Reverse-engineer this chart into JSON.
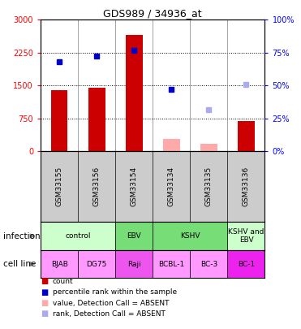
{
  "title": "GDS989 / 34936_at",
  "samples": [
    "GSM33155",
    "GSM33156",
    "GSM33154",
    "GSM33134",
    "GSM33135",
    "GSM33136"
  ],
  "infection_groups": [
    {
      "label": "control",
      "start": 0,
      "end": 2,
      "color": "#ccffcc"
    },
    {
      "label": "EBV",
      "start": 2,
      "end": 3,
      "color": "#77dd77"
    },
    {
      "label": "KSHV",
      "start": 3,
      "end": 5,
      "color": "#77dd77"
    },
    {
      "label": "KSHV and\nEBV",
      "start": 5,
      "end": 6,
      "color": "#ccffcc"
    }
  ],
  "cell_lines": [
    {
      "label": "BJAB",
      "start": 0,
      "end": 1,
      "color": "#ff99ff"
    },
    {
      "label": "DG75",
      "start": 1,
      "end": 2,
      "color": "#ff99ff"
    },
    {
      "label": "Raji",
      "start": 2,
      "end": 3,
      "color": "#ee55ee"
    },
    {
      "label": "BCBL-1",
      "start": 3,
      "end": 4,
      "color": "#ff99ff"
    },
    {
      "label": "BC-3",
      "start": 4,
      "end": 5,
      "color": "#ff99ff"
    },
    {
      "label": "BC-1",
      "start": 5,
      "end": 6,
      "color": "#ee22ee"
    }
  ],
  "bar_values": [
    1390,
    1455,
    2650,
    null,
    null,
    685
  ],
  "bar_absent_values": [
    null,
    null,
    null,
    285,
    170,
    null
  ],
  "rank_values": [
    2040,
    2175,
    2310,
    1415,
    null,
    null
  ],
  "rank_absent_values": [
    null,
    null,
    null,
    null,
    945,
    1525
  ],
  "bar_color": "#cc0000",
  "bar_absent_color": "#ffaaaa",
  "rank_color": "#0000cc",
  "rank_absent_color": "#aaaaee",
  "ylim_left": [
    0,
    3000
  ],
  "ylim_right": [
    0,
    100
  ],
  "yticks_left": [
    0,
    750,
    1500,
    2250,
    3000
  ],
  "yticks_right": [
    0,
    25,
    50,
    75,
    100
  ],
  "ytick_labels_left": [
    "0",
    "750",
    "1500",
    "2250",
    "3000"
  ],
  "ytick_labels_right": [
    "0%",
    "25%",
    "50%",
    "75%",
    "100%"
  ],
  "bg_color": "#cccccc",
  "legend_items": [
    {
      "color": "#cc0000",
      "label": "count"
    },
    {
      "color": "#0000cc",
      "label": "percentile rank within the sample"
    },
    {
      "color": "#ffaaaa",
      "label": "value, Detection Call = ABSENT"
    },
    {
      "color": "#aaaaee",
      "label": "rank, Detection Call = ABSENT"
    }
  ]
}
